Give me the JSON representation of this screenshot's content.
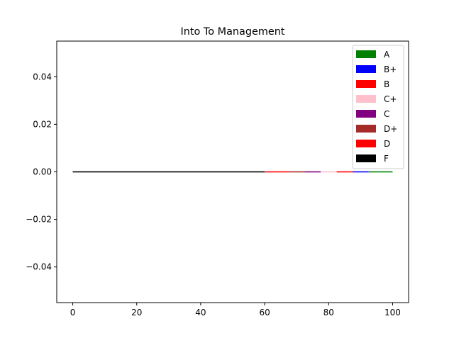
{
  "chart_data": {
    "type": "bar",
    "title": "Into To Management",
    "xlabel": "",
    "ylabel": "",
    "xlim": [
      -5,
      105
    ],
    "ylim": [
      -0.055,
      0.055
    ],
    "x_ticks": [
      0,
      20,
      40,
      60,
      80,
      100
    ],
    "x_tick_labels": [
      "0",
      "20",
      "40",
      "60",
      "80",
      "100"
    ],
    "y_ticks": [
      -0.04,
      -0.02,
      0.0,
      0.02,
      0.04
    ],
    "y_tick_labels": [
      "−0.04",
      "−0.02",
      "0.00",
      "0.02",
      "0.04"
    ],
    "grid": false,
    "legend_position": "upper-right",
    "series": [
      {
        "name": "A",
        "color": "#008000",
        "x_start": 92.5,
        "x_end": 100,
        "values": [
          0
        ]
      },
      {
        "name": "B+",
        "color": "#0000ff",
        "x_start": 87.5,
        "x_end": 92.5,
        "values": [
          0
        ]
      },
      {
        "name": "B",
        "color": "#ff0000",
        "x_start": 82.5,
        "x_end": 87.5,
        "values": [
          0
        ]
      },
      {
        "name": "C+",
        "color": "#ffc0cb",
        "x_start": 77.5,
        "x_end": 82.5,
        "values": [
          0
        ]
      },
      {
        "name": "C",
        "color": "#800080",
        "x_start": 72.5,
        "x_end": 77.5,
        "values": [
          0
        ]
      },
      {
        "name": "D+",
        "color": "#a52a2a",
        "x_start": 67.5,
        "x_end": 72.5,
        "values": [
          0
        ]
      },
      {
        "name": "D",
        "color": "#ff0000",
        "x_start": 60,
        "x_end": 67.5,
        "values": [
          0
        ]
      },
      {
        "name": "F",
        "color": "#000000",
        "x_start": 0,
        "x_end": 60,
        "values": [
          0
        ]
      }
    ]
  }
}
